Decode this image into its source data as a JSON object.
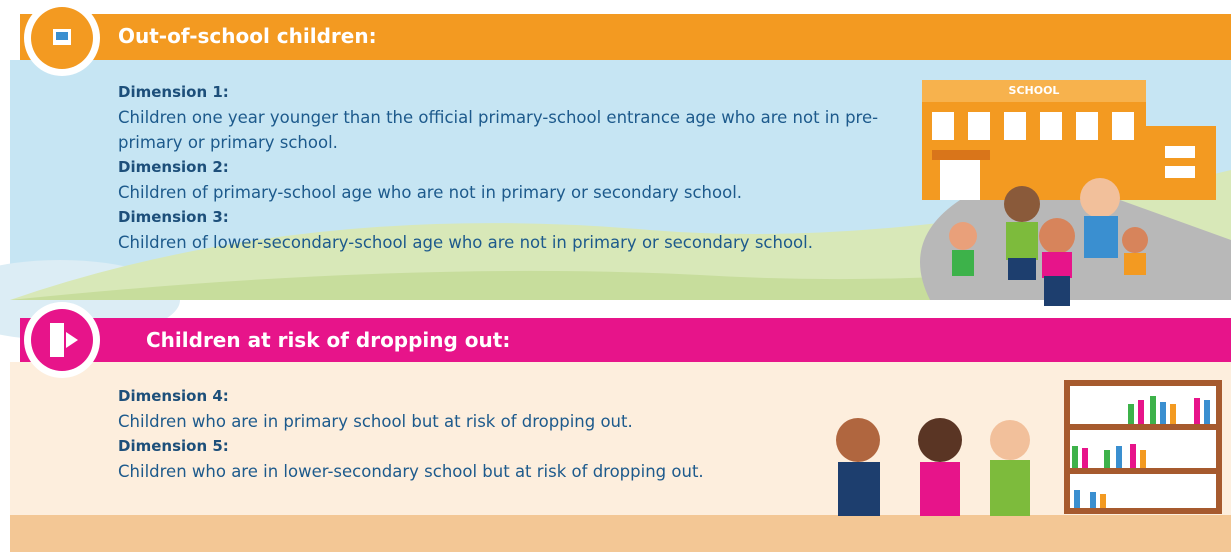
{
  "sections": [
    {
      "header": "Out-of-school children:",
      "items": [
        {
          "label": "Dimension 1:",
          "text": "Children one year younger than the official primary-school entrance age who are not in pre-primary or primary school."
        },
        {
          "label": "Dimension 2:",
          "text": "Children of primary-school age who are not in primary or secondary school."
        },
        {
          "label": "Dimension 3:",
          "text": "Children of lower-secondary-school age who are not in primary or secondary school."
        }
      ]
    },
    {
      "header": "Children at risk of dropping out:",
      "items": [
        {
          "label": "Dimension 4:",
          "text": "Children who are in primary school but at risk of dropping out."
        },
        {
          "label": "Dimension 5:",
          "text": "Children who are in lower-secondary school but at risk of dropping out."
        }
      ]
    }
  ],
  "illustration": {
    "school_sign": "SCHOOL"
  }
}
